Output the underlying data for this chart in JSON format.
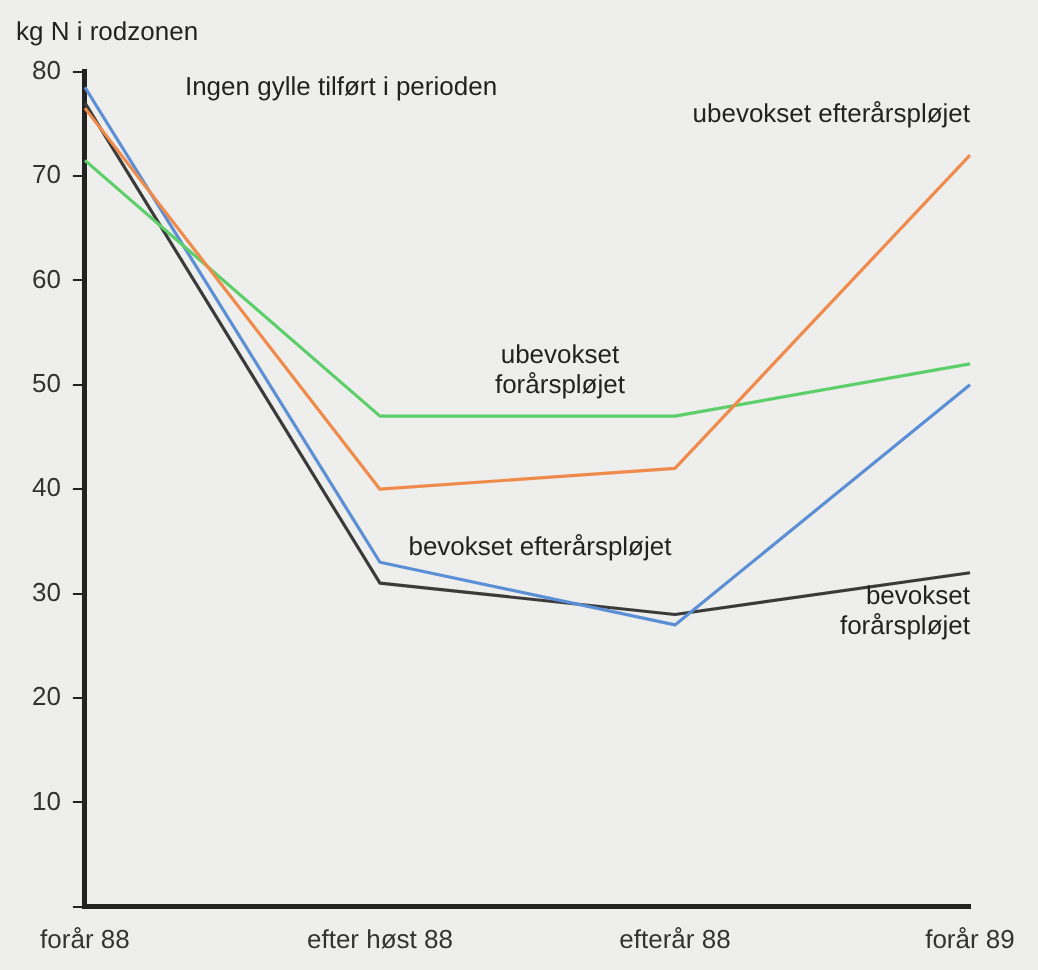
{
  "chart_data": {
    "type": "line",
    "ylabel": "kg N i rodzonen",
    "annotations": [
      "Ingen gylle tilført i perioden"
    ],
    "categories": [
      "forår 88",
      "efter høst 88",
      "efterår 88",
      "forår 89"
    ],
    "series": [
      {
        "name": "ubevokset efterårspløjet",
        "color": "#f08a4b",
        "values": [
          76.5,
          40,
          42,
          72
        ]
      },
      {
        "name": "ubevokset forårspløjet",
        "color": "#5ccf6a",
        "values": [
          71.5,
          47,
          47,
          52
        ]
      },
      {
        "name": "bevokset efterårspløjet",
        "color": "#5a8fd6",
        "values": [
          78.5,
          33,
          27,
          50
        ]
      },
      {
        "name": "bevokset forårspløjet",
        "color": "#3a3a3a",
        "values": [
          77,
          31,
          28,
          32
        ]
      }
    ],
    "ylim": [
      0,
      80
    ],
    "yticks": [
      {
        "value": 0,
        "label": null
      },
      10,
      20,
      30,
      40,
      50,
      60,
      70,
      80
    ],
    "grid": false,
    "legend": false,
    "marker": "none",
    "line_style": "solid"
  }
}
